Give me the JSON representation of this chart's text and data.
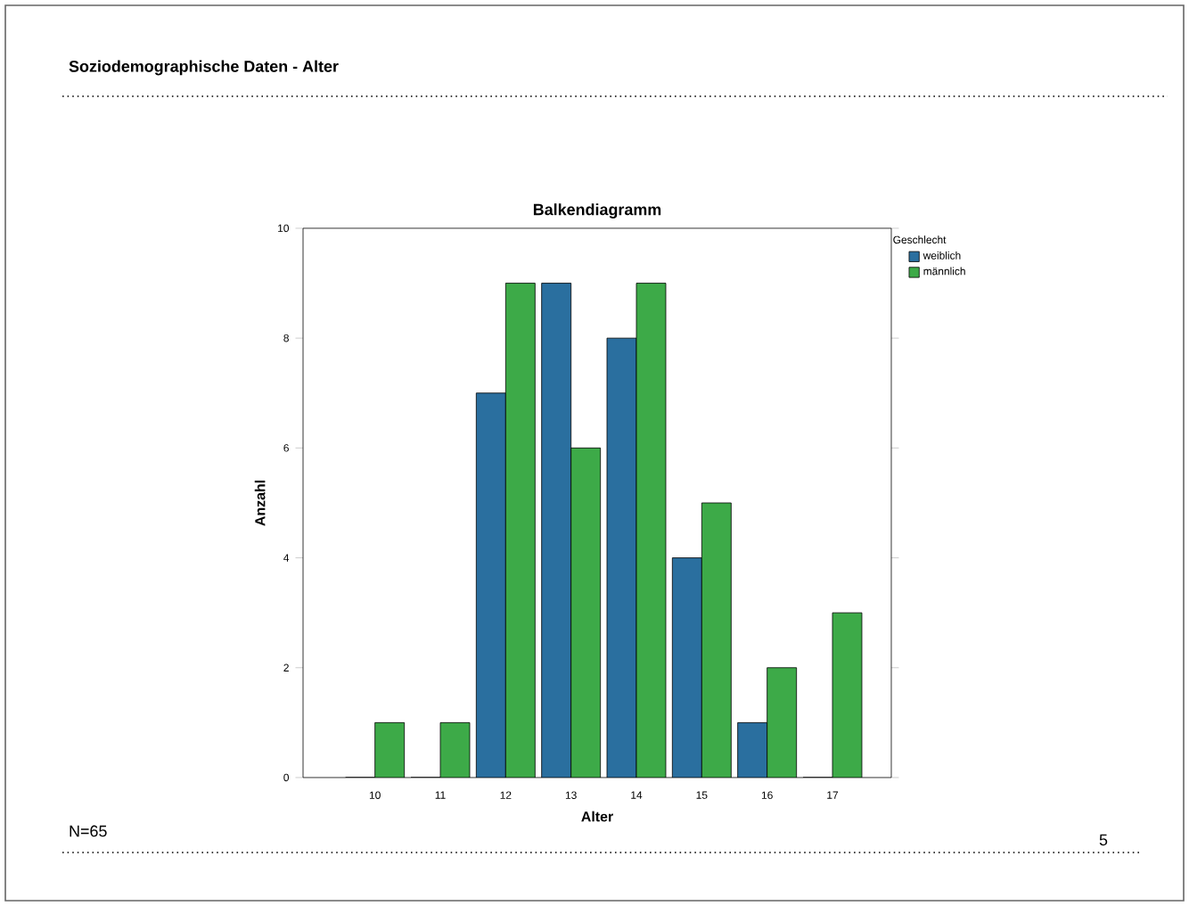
{
  "chart_data": {
    "type": "bar",
    "title": "Balkendiagramm",
    "xlabel": "Alter",
    "ylabel": "Anzahl",
    "legend_title": "Geschlecht",
    "categories": [
      "10",
      "11",
      "12",
      "13",
      "14",
      "15",
      "16",
      "17"
    ],
    "series": [
      {
        "name": "weiblich",
        "color": "#2a6f9f",
        "values": [
          0,
          0,
          7,
          9,
          8,
          4,
          1,
          0
        ]
      },
      {
        "name": "männlich",
        "color": "#3daa48",
        "values": [
          1,
          1,
          9,
          6,
          9,
          5,
          2,
          3
        ]
      }
    ],
    "ylim": [
      0,
      10
    ],
    "yticks": [
      0,
      2,
      4,
      6,
      8,
      10
    ],
    "legend": "top right",
    "annotations": [
      "Soziodemographische Daten - Alter",
      "N=65",
      "5"
    ]
  }
}
